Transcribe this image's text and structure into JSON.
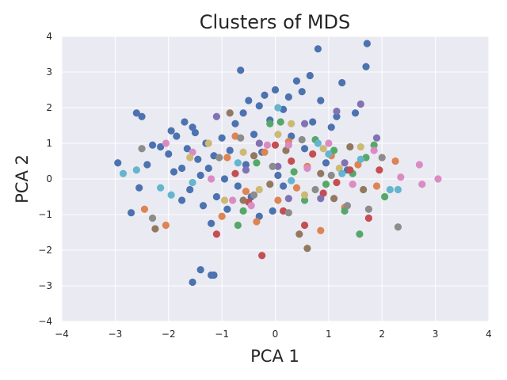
{
  "chart_data": {
    "type": "scatter",
    "title": "Clusters of MDS",
    "xlabel": "PCA 1",
    "ylabel": "PCA 2",
    "xlim": [
      -4,
      4
    ],
    "ylim": [
      -4,
      4
    ],
    "xticks": [
      -4,
      -3,
      -2,
      -1,
      0,
      1,
      2,
      3,
      4
    ],
    "yticks": [
      -4,
      -3,
      -2,
      -1,
      0,
      1,
      2,
      3,
      4
    ],
    "grid": true,
    "background": "#eaeaf2",
    "gridColor": "#ffffff",
    "colors": [
      "#4c72b0",
      "#dd8452",
      "#55a868",
      "#c44e52",
      "#8172b3",
      "#937860",
      "#da8bc3",
      "#8c8c8c",
      "#ccb974",
      "#64b5cd"
    ],
    "series": [
      {
        "color": "#4c72b0",
        "points": [
          [
            -2.95,
            0.45
          ],
          [
            -2.7,
            -0.95
          ],
          [
            -2.6,
            1.85
          ],
          [
            -2.5,
            1.75
          ],
          [
            -2.4,
            0.4
          ],
          [
            -2.3,
            0.95
          ],
          [
            -2.15,
            0.9
          ],
          [
            -2.0,
            0.7
          ],
          [
            -1.95,
            1.35
          ],
          [
            -1.9,
            0.2
          ],
          [
            -1.85,
            1.2
          ],
          [
            -1.75,
            0.3
          ],
          [
            -1.7,
            1.6
          ],
          [
            -1.65,
            0.85
          ],
          [
            -1.6,
            -0.3
          ],
          [
            -1.55,
            1.45
          ],
          [
            -1.5,
            1.3
          ],
          [
            -1.45,
            0.55
          ],
          [
            -1.4,
            0.1
          ],
          [
            -1.35,
            -0.75
          ],
          [
            -1.3,
            1.0
          ],
          [
            -1.25,
            0.3
          ],
          [
            -1.2,
            -1.25
          ],
          [
            -1.15,
            0.65
          ],
          [
            -1.1,
            -0.5
          ],
          [
            -1.0,
            1.15
          ],
          [
            -0.95,
            0.0
          ],
          [
            -0.9,
            -0.85
          ],
          [
            -0.85,
            0.8
          ],
          [
            -0.75,
            1.55
          ],
          [
            -0.7,
            -0.2
          ],
          [
            -0.6,
            1.85
          ],
          [
            -0.55,
            0.4
          ],
          [
            -0.5,
            2.2
          ],
          [
            -0.45,
            -0.5
          ],
          [
            -0.4,
            1.25
          ],
          [
            -0.3,
            2.05
          ],
          [
            -0.25,
            0.75
          ],
          [
            -0.2,
            2.35
          ],
          [
            -0.1,
            1.65
          ],
          [
            0.0,
            2.5
          ],
          [
            0.05,
            0.1
          ],
          [
            0.15,
            1.95
          ],
          [
            0.25,
            2.3
          ],
          [
            0.3,
            1.2
          ],
          [
            0.4,
            2.75
          ],
          [
            0.5,
            2.45
          ],
          [
            0.55,
            0.85
          ],
          [
            0.65,
            2.9
          ],
          [
            0.7,
            1.6
          ],
          [
            0.8,
            3.65
          ],
          [
            0.85,
            2.2
          ],
          [
            0.95,
            0.45
          ],
          [
            1.05,
            1.45
          ],
          [
            1.15,
            1.75
          ],
          [
            1.25,
            2.7
          ],
          [
            1.35,
            0.25
          ],
          [
            1.5,
            1.85
          ],
          [
            1.7,
            3.15
          ],
          [
            1.72,
            3.8
          ],
          [
            -2.55,
            -0.25
          ],
          [
            -1.75,
            -0.6
          ],
          [
            -1.4,
            -2.55
          ],
          [
            -1.55,
            -2.9
          ],
          [
            -1.15,
            -2.7
          ],
          [
            -1.2,
            -2.7
          ],
          [
            -0.65,
            3.05
          ],
          [
            -0.3,
            -1.05
          ],
          [
            -0.05,
            -0.9
          ],
          [
            0.15,
            -0.2
          ]
        ]
      },
      {
        "color": "#dd8452",
        "points": [
          [
            -2.45,
            -0.85
          ],
          [
            -2.05,
            -1.3
          ],
          [
            -1.0,
            -1.05
          ],
          [
            -0.9,
            0.6
          ],
          [
            -0.75,
            1.2
          ],
          [
            -0.55,
            -0.35
          ],
          [
            -0.35,
            -1.2
          ],
          [
            -0.2,
            0.75
          ],
          [
            0.05,
            -0.6
          ],
          [
            0.25,
            1.05
          ],
          [
            0.4,
            -0.25
          ],
          [
            0.6,
            0.35
          ],
          [
            0.85,
            -1.45
          ],
          [
            1.05,
            0.65
          ],
          [
            1.3,
            -0.8
          ],
          [
            1.55,
            0.4
          ],
          [
            1.9,
            -0.2
          ],
          [
            2.25,
            0.5
          ]
        ]
      },
      {
        "color": "#55a868",
        "points": [
          [
            -0.7,
            -1.3
          ],
          [
            -0.6,
            -0.9
          ],
          [
            -0.35,
            0.45
          ],
          [
            -0.1,
            1.55
          ],
          [
            0.1,
            1.6
          ],
          [
            0.35,
            0.2
          ],
          [
            0.55,
            -0.6
          ],
          [
            0.75,
            1.1
          ],
          [
            0.95,
            -0.15
          ],
          [
            1.1,
            0.8
          ],
          [
            1.3,
            -0.9
          ],
          [
            1.45,
            0.15
          ],
          [
            1.58,
            -1.55
          ],
          [
            1.7,
            0.6
          ],
          [
            1.85,
            0.95
          ],
          [
            2.05,
            -0.5
          ]
        ]
      },
      {
        "color": "#c44e52",
        "points": [
          [
            -1.1,
            -1.55
          ],
          [
            -0.75,
            0.15
          ],
          [
            -0.5,
            -0.65
          ],
          [
            -0.25,
            -2.15
          ],
          [
            0.0,
            0.95
          ],
          [
            0.15,
            -0.9
          ],
          [
            0.3,
            0.5
          ],
          [
            0.55,
            -1.3
          ],
          [
            0.7,
            0.7
          ],
          [
            0.9,
            -0.4
          ],
          [
            1.15,
            -0.1
          ],
          [
            1.4,
            0.25
          ],
          [
            1.75,
            -1.1
          ],
          [
            1.95,
            0.25
          ]
        ]
      },
      {
        "color": "#8172b3",
        "points": [
          [
            -1.1,
            1.75
          ],
          [
            -0.55,
            0.25
          ],
          [
            -0.3,
            1.0
          ],
          [
            0.05,
            0.35
          ],
          [
            0.25,
            -0.55
          ],
          [
            0.55,
            1.55
          ],
          [
            0.85,
            -0.55
          ],
          [
            1.15,
            1.9
          ],
          [
            1.3,
            0.45
          ],
          [
            1.6,
            2.1
          ],
          [
            1.9,
            1.15
          ]
        ]
      },
      {
        "color": "#937860",
        "points": [
          [
            -2.25,
            -1.4
          ],
          [
            -0.85,
            1.85
          ],
          [
            -0.6,
            -0.6
          ],
          [
            -0.4,
            0.65
          ],
          [
            -0.1,
            -0.15
          ],
          [
            0.2,
            0.8
          ],
          [
            0.45,
            -1.55
          ],
          [
            0.6,
            -1.95
          ],
          [
            0.85,
            0.15
          ],
          [
            1.1,
            -0.55
          ],
          [
            1.4,
            0.9
          ],
          [
            1.65,
            -0.3
          ]
        ]
      },
      {
        "color": "#da8bc3",
        "points": [
          [
            -2.05,
            1.0
          ],
          [
            -1.55,
            0.75
          ],
          [
            -1.2,
            0.0
          ],
          [
            -0.8,
            -0.6
          ],
          [
            -0.45,
            -0.75
          ],
          [
            -0.15,
            0.95
          ],
          [
            0.25,
            0.95
          ],
          [
            0.6,
            0.3
          ],
          [
            1.0,
            1.0
          ],
          [
            1.45,
            -0.15
          ],
          [
            1.85,
            0.8
          ],
          [
            2.35,
            0.05
          ],
          [
            2.7,
            0.4
          ],
          [
            2.75,
            -0.15
          ],
          [
            3.05,
            0.0
          ]
        ]
      },
      {
        "color": "#8c8c8c",
        "points": [
          [
            -2.5,
            0.85
          ],
          [
            -2.3,
            -1.1
          ],
          [
            -1.05,
            0.6
          ],
          [
            -0.65,
            1.15
          ],
          [
            -0.4,
            -0.45
          ],
          [
            -0.05,
            0.35
          ],
          [
            0.25,
            -0.95
          ],
          [
            0.5,
            1.1
          ],
          [
            0.75,
            -0.3
          ],
          [
            1.05,
            0.1
          ],
          [
            1.35,
            -0.75
          ],
          [
            1.75,
            -0.85
          ],
          [
            2.0,
            0.6
          ],
          [
            2.3,
            -1.35
          ]
        ]
      },
      {
        "color": "#ccb974",
        "points": [
          [
            -1.6,
            0.6
          ],
          [
            -1.25,
            1.0
          ],
          [
            -0.95,
            -0.6
          ],
          [
            -0.6,
            0.75
          ],
          [
            -0.3,
            -0.3
          ],
          [
            0.05,
            1.25
          ],
          [
            0.3,
            1.55
          ],
          [
            0.55,
            -0.45
          ],
          [
            0.9,
            0.85
          ],
          [
            1.2,
            0.3
          ],
          [
            1.6,
            0.9
          ]
        ]
      },
      {
        "color": "#64b5cd",
        "points": [
          [
            -2.85,
            0.15
          ],
          [
            -2.6,
            0.25
          ],
          [
            -2.15,
            -0.25
          ],
          [
            -1.95,
            -0.45
          ],
          [
            -1.55,
            -0.1
          ],
          [
            -0.7,
            0.45
          ],
          [
            0.05,
            2.0
          ],
          [
            0.3,
            -0.05
          ],
          [
            0.8,
            1.0
          ],
          [
            1.0,
            0.7
          ],
          [
            1.25,
            0.15
          ],
          [
            1.6,
            0.55
          ],
          [
            2.15,
            -0.3
          ],
          [
            2.3,
            -0.3
          ]
        ]
      }
    ]
  }
}
